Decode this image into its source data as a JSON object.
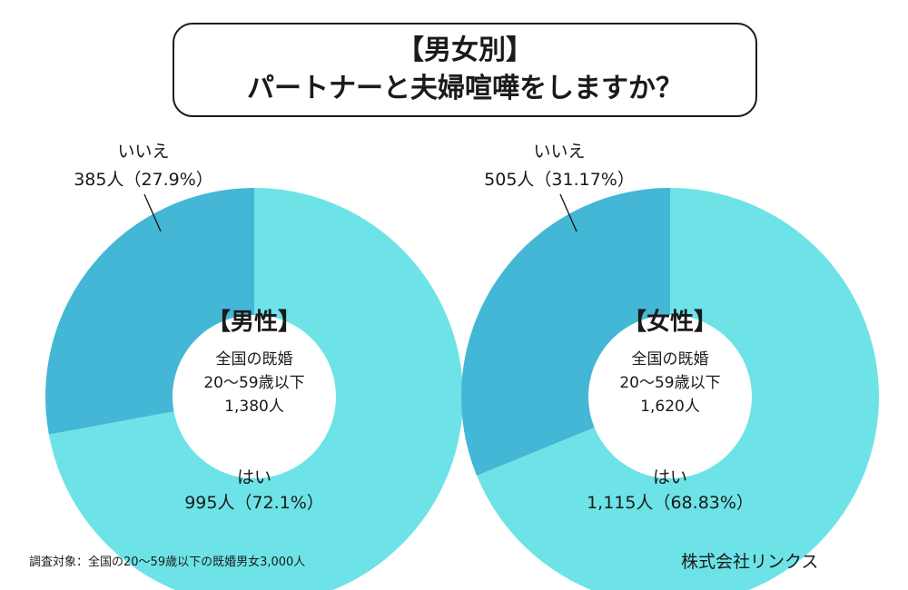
{
  "title": {
    "line1": "【男女別】",
    "line2": "パートナーと夫婦喧嘩をしますか？"
  },
  "colors": {
    "yes": "#6de3e7",
    "no": "#44b6d6",
    "background": "#ffffff",
    "text": "#1a1a1a"
  },
  "chart_data": [
    {
      "type": "pie",
      "title": "【男性】",
      "subtitle": [
        "全国の既婚",
        "20〜59歳以下",
        "1,380人"
      ],
      "slices": [
        {
          "label": "はい",
          "value": 995,
          "percent": 72.1,
          "value_label": "995人（72.1%）"
        },
        {
          "label": "いいえ",
          "value": 385,
          "percent": 27.9,
          "value_label": "385人（27.9%）"
        }
      ]
    },
    {
      "type": "pie",
      "title": "【女性】",
      "subtitle": [
        "全国の既婚",
        "20〜59歳以下",
        "1,620人"
      ],
      "slices": [
        {
          "label": "はい",
          "value": 1115,
          "percent": 68.83,
          "value_label": "1,115人（68.83%）"
        },
        {
          "label": "いいえ",
          "value": 505,
          "percent": 31.17,
          "value_label": "505人（31.17%）"
        }
      ]
    }
  ],
  "footnote": "調査対象：全国の20〜59歳以下の既婚男女3,000人",
  "company": "株式会社リンクス"
}
